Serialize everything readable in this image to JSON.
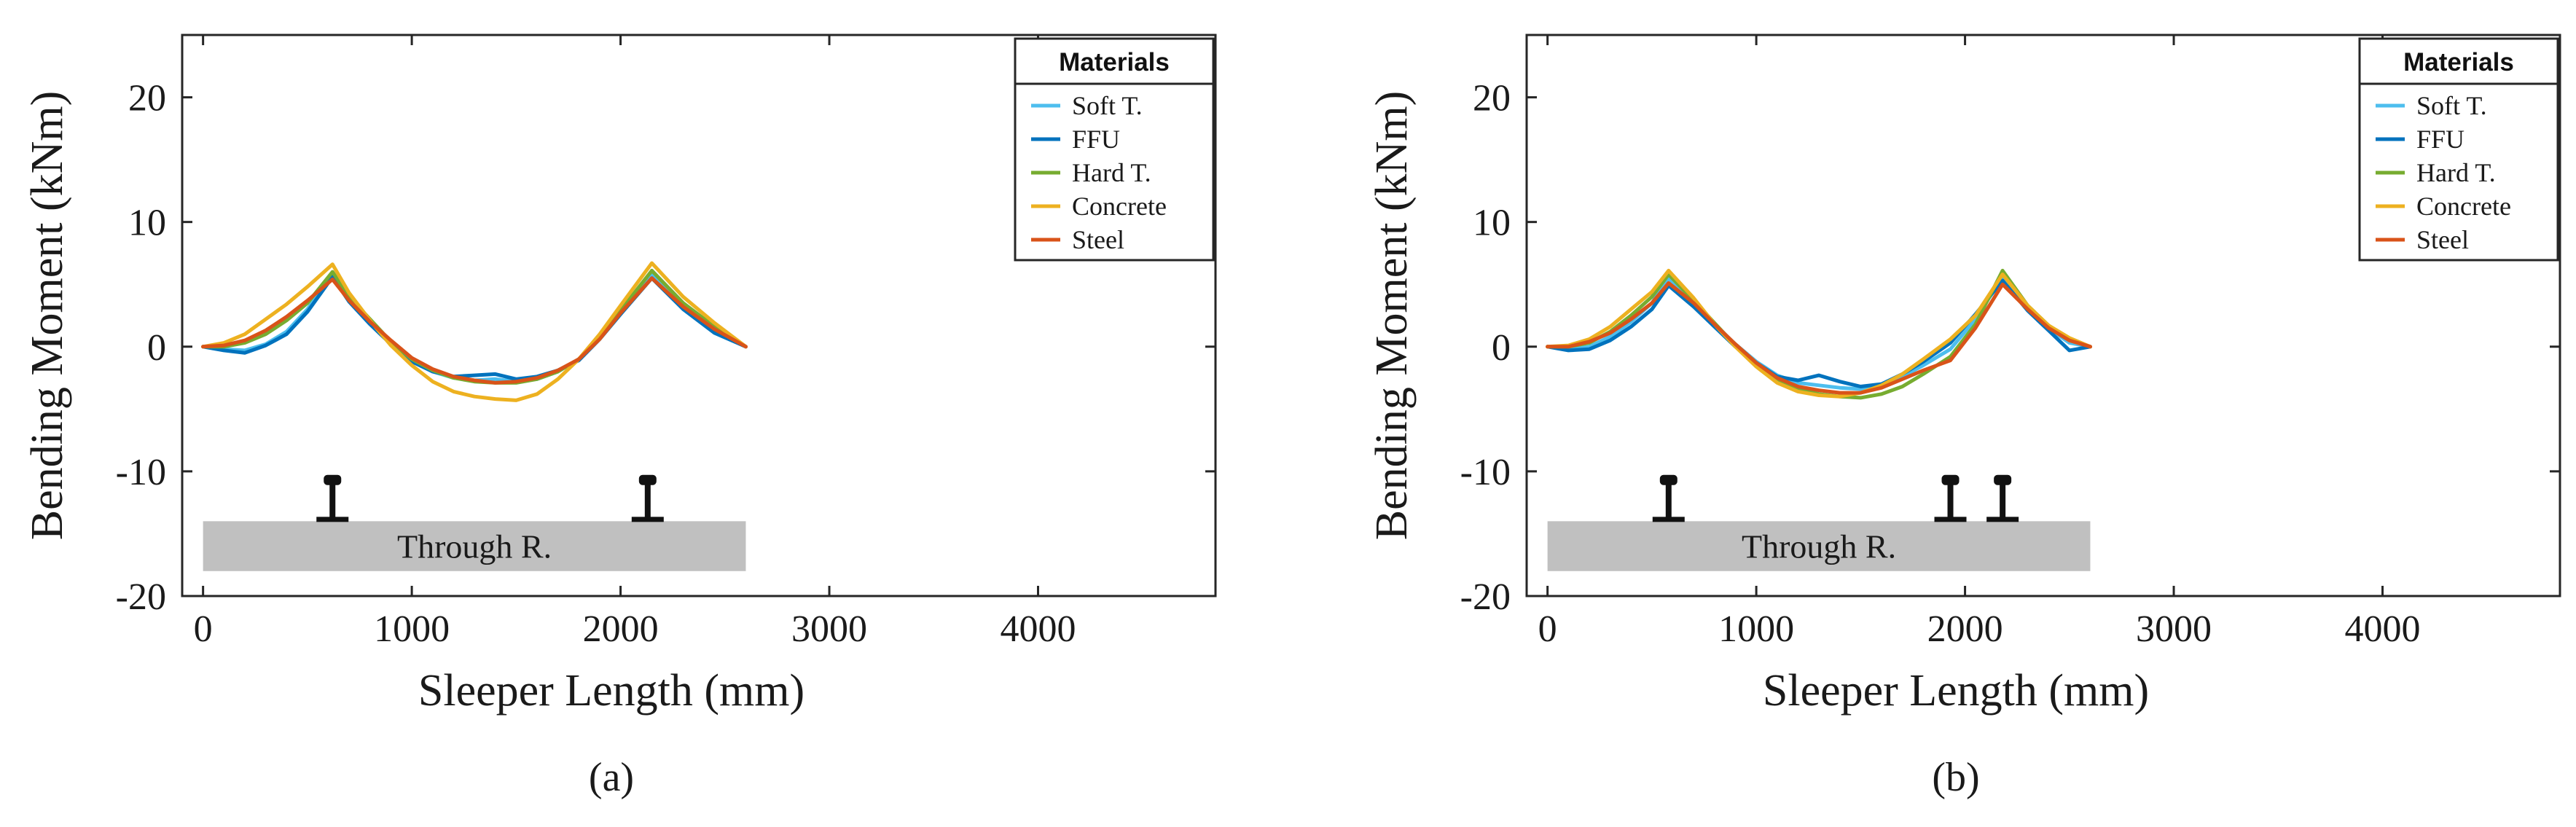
{
  "chart_data": [
    {
      "type": "line",
      "caption": "(a)",
      "xlabel": "Sleeper Length (mm)",
      "ylabel": "Bending Moment (kNm)",
      "xlim": [
        -100,
        4850
      ],
      "ylim": [
        -20,
        25
      ],
      "xticks": [
        0,
        1000,
        2000,
        3000,
        4000
      ],
      "xtick_labels": [
        "0",
        "1000",
        "2000",
        "3000",
        "4000"
      ],
      "yticks": [
        -20,
        -10,
        0,
        10,
        20
      ],
      "ytick_labels": [
        "-20",
        "-10",
        "0",
        "10",
        "20"
      ],
      "legend": {
        "title": "Materials",
        "position": "top-right"
      },
      "sleeper": {
        "label": "Through R.",
        "x_start": 0,
        "x_end": 2600,
        "y_top": -14,
        "y_bottom": -18
      },
      "rails_x": [
        620,
        2130
      ],
      "series": [
        {
          "name": "Soft T.",
          "color": "#4dbeee",
          "x": [
            0,
            100,
            200,
            300,
            400,
            500,
            620,
            700,
            800,
            900,
            1000,
            1100,
            1200,
            1300,
            1400,
            1500,
            1600,
            1700,
            1800,
            1900,
            2000,
            2150,
            2300,
            2450,
            2600
          ],
          "y": [
            0,
            -0.2,
            -0.3,
            0.2,
            1.2,
            3.0,
            5.8,
            3.8,
            2.0,
            0.3,
            -1.1,
            -2.0,
            -2.5,
            -2.7,
            -2.6,
            -2.8,
            -2.6,
            -2.0,
            -1.0,
            0.8,
            2.8,
            5.8,
            3.2,
            1.3,
            0
          ]
        },
        {
          "name": "FFU",
          "color": "#0072bd",
          "x": [
            0,
            100,
            200,
            300,
            400,
            500,
            620,
            700,
            800,
            900,
            1000,
            1100,
            1200,
            1300,
            1400,
            1500,
            1600,
            1700,
            1800,
            1900,
            2000,
            2150,
            2300,
            2450,
            2600
          ],
          "y": [
            0,
            -0.3,
            -0.5,
            0.1,
            1.0,
            2.8,
            5.6,
            3.6,
            1.8,
            0.2,
            -1.2,
            -2.0,
            -2.4,
            -2.3,
            -2.2,
            -2.6,
            -2.4,
            -1.9,
            -1.1,
            0.6,
            2.6,
            5.5,
            3.0,
            1.1,
            0
          ]
        },
        {
          "name": "Hard T.",
          "color": "#77ac30",
          "x": [
            0,
            100,
            200,
            300,
            400,
            500,
            620,
            700,
            800,
            900,
            1000,
            1100,
            1200,
            1300,
            1400,
            1500,
            1600,
            1700,
            1800,
            1900,
            2000,
            2150,
            2300,
            2450,
            2600
          ],
          "y": [
            0,
            0.0,
            0.3,
            1.0,
            2.1,
            3.5,
            6.0,
            4.0,
            2.2,
            0.4,
            -1.0,
            -1.9,
            -2.5,
            -2.8,
            -2.9,
            -2.9,
            -2.6,
            -2.0,
            -1.0,
            0.7,
            2.9,
            6.1,
            3.5,
            1.6,
            0
          ]
        },
        {
          "name": "Concrete",
          "color": "#edb120",
          "x": [
            0,
            100,
            200,
            300,
            400,
            500,
            620,
            700,
            800,
            900,
            1000,
            1100,
            1200,
            1300,
            1400,
            1500,
            1600,
            1700,
            1800,
            1900,
            2000,
            2150,
            2300,
            2450,
            2600
          ],
          "y": [
            0,
            0.3,
            1.0,
            2.2,
            3.4,
            4.8,
            6.6,
            4.3,
            2.1,
            0.1,
            -1.5,
            -2.8,
            -3.6,
            -4.0,
            -4.2,
            -4.3,
            -3.8,
            -2.6,
            -1.0,
            1.0,
            3.3,
            6.7,
            4.0,
            1.9,
            0
          ]
        },
        {
          "name": "Steel",
          "color": "#d95319",
          "x": [
            0,
            100,
            200,
            300,
            400,
            500,
            620,
            700,
            800,
            900,
            1000,
            1100,
            1200,
            1300,
            1400,
            1500,
            1600,
            1700,
            1800,
            1900,
            2000,
            2150,
            2300,
            2450,
            2600
          ],
          "y": [
            0,
            0.1,
            0.5,
            1.3,
            2.4,
            3.7,
            5.4,
            3.7,
            2.0,
            0.5,
            -0.9,
            -1.8,
            -2.4,
            -2.7,
            -2.9,
            -2.8,
            -2.5,
            -1.9,
            -1.0,
            0.6,
            2.7,
            5.5,
            3.2,
            1.4,
            0
          ]
        }
      ]
    },
    {
      "type": "line",
      "caption": "(b)",
      "xlabel": "Sleeper Length (mm)",
      "ylabel": "Bending Moment (kNm)",
      "xlim": [
        -100,
        4850
      ],
      "ylim": [
        -20,
        25
      ],
      "xticks": [
        0,
        1000,
        2000,
        3000,
        4000
      ],
      "xtick_labels": [
        "0",
        "1000",
        "2000",
        "3000",
        "4000"
      ],
      "yticks": [
        -20,
        -10,
        0,
        10,
        20
      ],
      "ytick_labels": [
        "-20",
        "-10",
        "0",
        "10",
        "20"
      ],
      "legend": {
        "title": "Materials",
        "position": "top-right"
      },
      "sleeper": {
        "label": "Through R.",
        "x_start": 0,
        "x_end": 2600,
        "y_top": -14,
        "y_bottom": -18
      },
      "rails_x": [
        580,
        1930,
        2180
      ],
      "series": [
        {
          "name": "Soft T.",
          "color": "#4dbeee",
          "x": [
            0,
            100,
            200,
            300,
            400,
            500,
            580,
            700,
            800,
            900,
            1000,
            1100,
            1200,
            1300,
            1400,
            1500,
            1600,
            1700,
            1800,
            1930,
            2050,
            2180,
            2300,
            2400,
            2500,
            2600
          ],
          "y": [
            0,
            -0.2,
            0.0,
            0.8,
            2.0,
            3.5,
            5.5,
            3.5,
            1.8,
            0.2,
            -1.2,
            -2.3,
            -2.9,
            -3.1,
            -3.3,
            -3.4,
            -3.1,
            -2.4,
            -1.5,
            -0.2,
            2.2,
            5.6,
            3.0,
            1.5,
            0.3,
            0
          ]
        },
        {
          "name": "FFU",
          "color": "#0072bd",
          "x": [
            0,
            100,
            200,
            300,
            400,
            500,
            580,
            700,
            800,
            900,
            1000,
            1100,
            1200,
            1300,
            1400,
            1500,
            1600,
            1700,
            1800,
            1930,
            2050,
            2180,
            2300,
            2400,
            2500,
            2600
          ],
          "y": [
            0,
            -0.3,
            -0.2,
            0.5,
            1.6,
            3.0,
            4.9,
            3.2,
            1.6,
            0.0,
            -1.3,
            -2.4,
            -2.7,
            -2.3,
            -2.8,
            -3.2,
            -3.0,
            -2.2,
            -1.2,
            0.3,
            2.6,
            5.3,
            2.9,
            1.3,
            -0.3,
            0
          ]
        },
        {
          "name": "Hard T.",
          "color": "#77ac30",
          "x": [
            0,
            100,
            200,
            300,
            400,
            500,
            580,
            700,
            800,
            900,
            1000,
            1100,
            1200,
            1300,
            1400,
            1500,
            1600,
            1700,
            1800,
            1930,
            2050,
            2180,
            2300,
            2400,
            2500,
            2600
          ],
          "y": [
            0,
            0.0,
            0.3,
            1.2,
            2.5,
            4.0,
            5.8,
            3.7,
            1.9,
            0.1,
            -1.5,
            -2.7,
            -3.4,
            -3.8,
            -4.0,
            -4.1,
            -3.8,
            -3.2,
            -2.2,
            -0.8,
            1.8,
            6.1,
            3.3,
            1.7,
            0.6,
            0
          ]
        },
        {
          "name": "Concrete",
          "color": "#edb120",
          "x": [
            0,
            100,
            200,
            300,
            400,
            500,
            580,
            700,
            800,
            900,
            1000,
            1100,
            1200,
            1300,
            1400,
            1500,
            1600,
            1700,
            1800,
            1930,
            2050,
            2180,
            2300,
            2400,
            2500,
            2600
          ],
          "y": [
            0,
            0.1,
            0.6,
            1.6,
            3.0,
            4.4,
            6.1,
            3.9,
            1.8,
            0.0,
            -1.6,
            -2.9,
            -3.6,
            -3.9,
            -4.0,
            -3.7,
            -3.1,
            -2.2,
            -1.0,
            0.6,
            2.5,
            5.8,
            3.3,
            1.7,
            0.7,
            0
          ]
        },
        {
          "name": "Steel",
          "color": "#d95319",
          "x": [
            0,
            100,
            200,
            300,
            400,
            500,
            580,
            700,
            800,
            900,
            1000,
            1100,
            1200,
            1300,
            1400,
            1500,
            1600,
            1700,
            1800,
            1930,
            2050,
            2180,
            2300,
            2400,
            2500,
            2600
          ],
          "y": [
            0,
            0.0,
            0.4,
            1.1,
            2.2,
            3.5,
            5.1,
            3.5,
            1.8,
            0.2,
            -1.3,
            -2.5,
            -3.2,
            -3.5,
            -3.7,
            -3.7,
            -3.3,
            -2.6,
            -1.9,
            -1.1,
            1.5,
            5.0,
            3.0,
            1.5,
            0.5,
            0
          ]
        }
      ]
    }
  ]
}
